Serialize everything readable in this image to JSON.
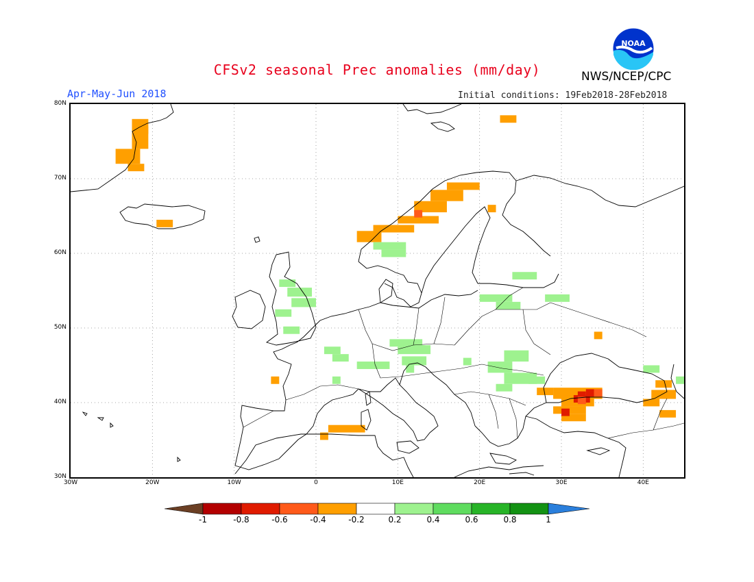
{
  "header": {
    "title": "CFSv2 seasonal Prec anomalies (mm/day)",
    "season": "Apr-May-Jun 2018",
    "initial_conditions": "Initial conditions: 19Feb2018-28Feb2018",
    "agency": "NWS/NCEP/CPC",
    "logo_text": "NOAA"
  },
  "map": {
    "lat_labels": [
      "80N",
      "70N",
      "60N",
      "50N",
      "40N",
      "30N"
    ],
    "lon_labels": [
      "30W",
      "20W",
      "10W",
      "0",
      "10E",
      "20E",
      "30E",
      "40E"
    ],
    "lon_range": [
      -30,
      45
    ],
    "lat_range": [
      30,
      80
    ]
  },
  "legend": {
    "labels": [
      "-1",
      "-0.8",
      "-0.6",
      "-0.4",
      "-0.2",
      "0.2",
      "0.4",
      "0.6",
      "0.8",
      "1"
    ],
    "colors": [
      "#6b3f24",
      "#b30000",
      "#e01b00",
      "#ff5a1a",
      "#ff9f00",
      "#ffffff",
      "#9ef28f",
      "#5fdc5f",
      "#27b427",
      "#139213",
      "#2a7fdc"
    ]
  }
}
